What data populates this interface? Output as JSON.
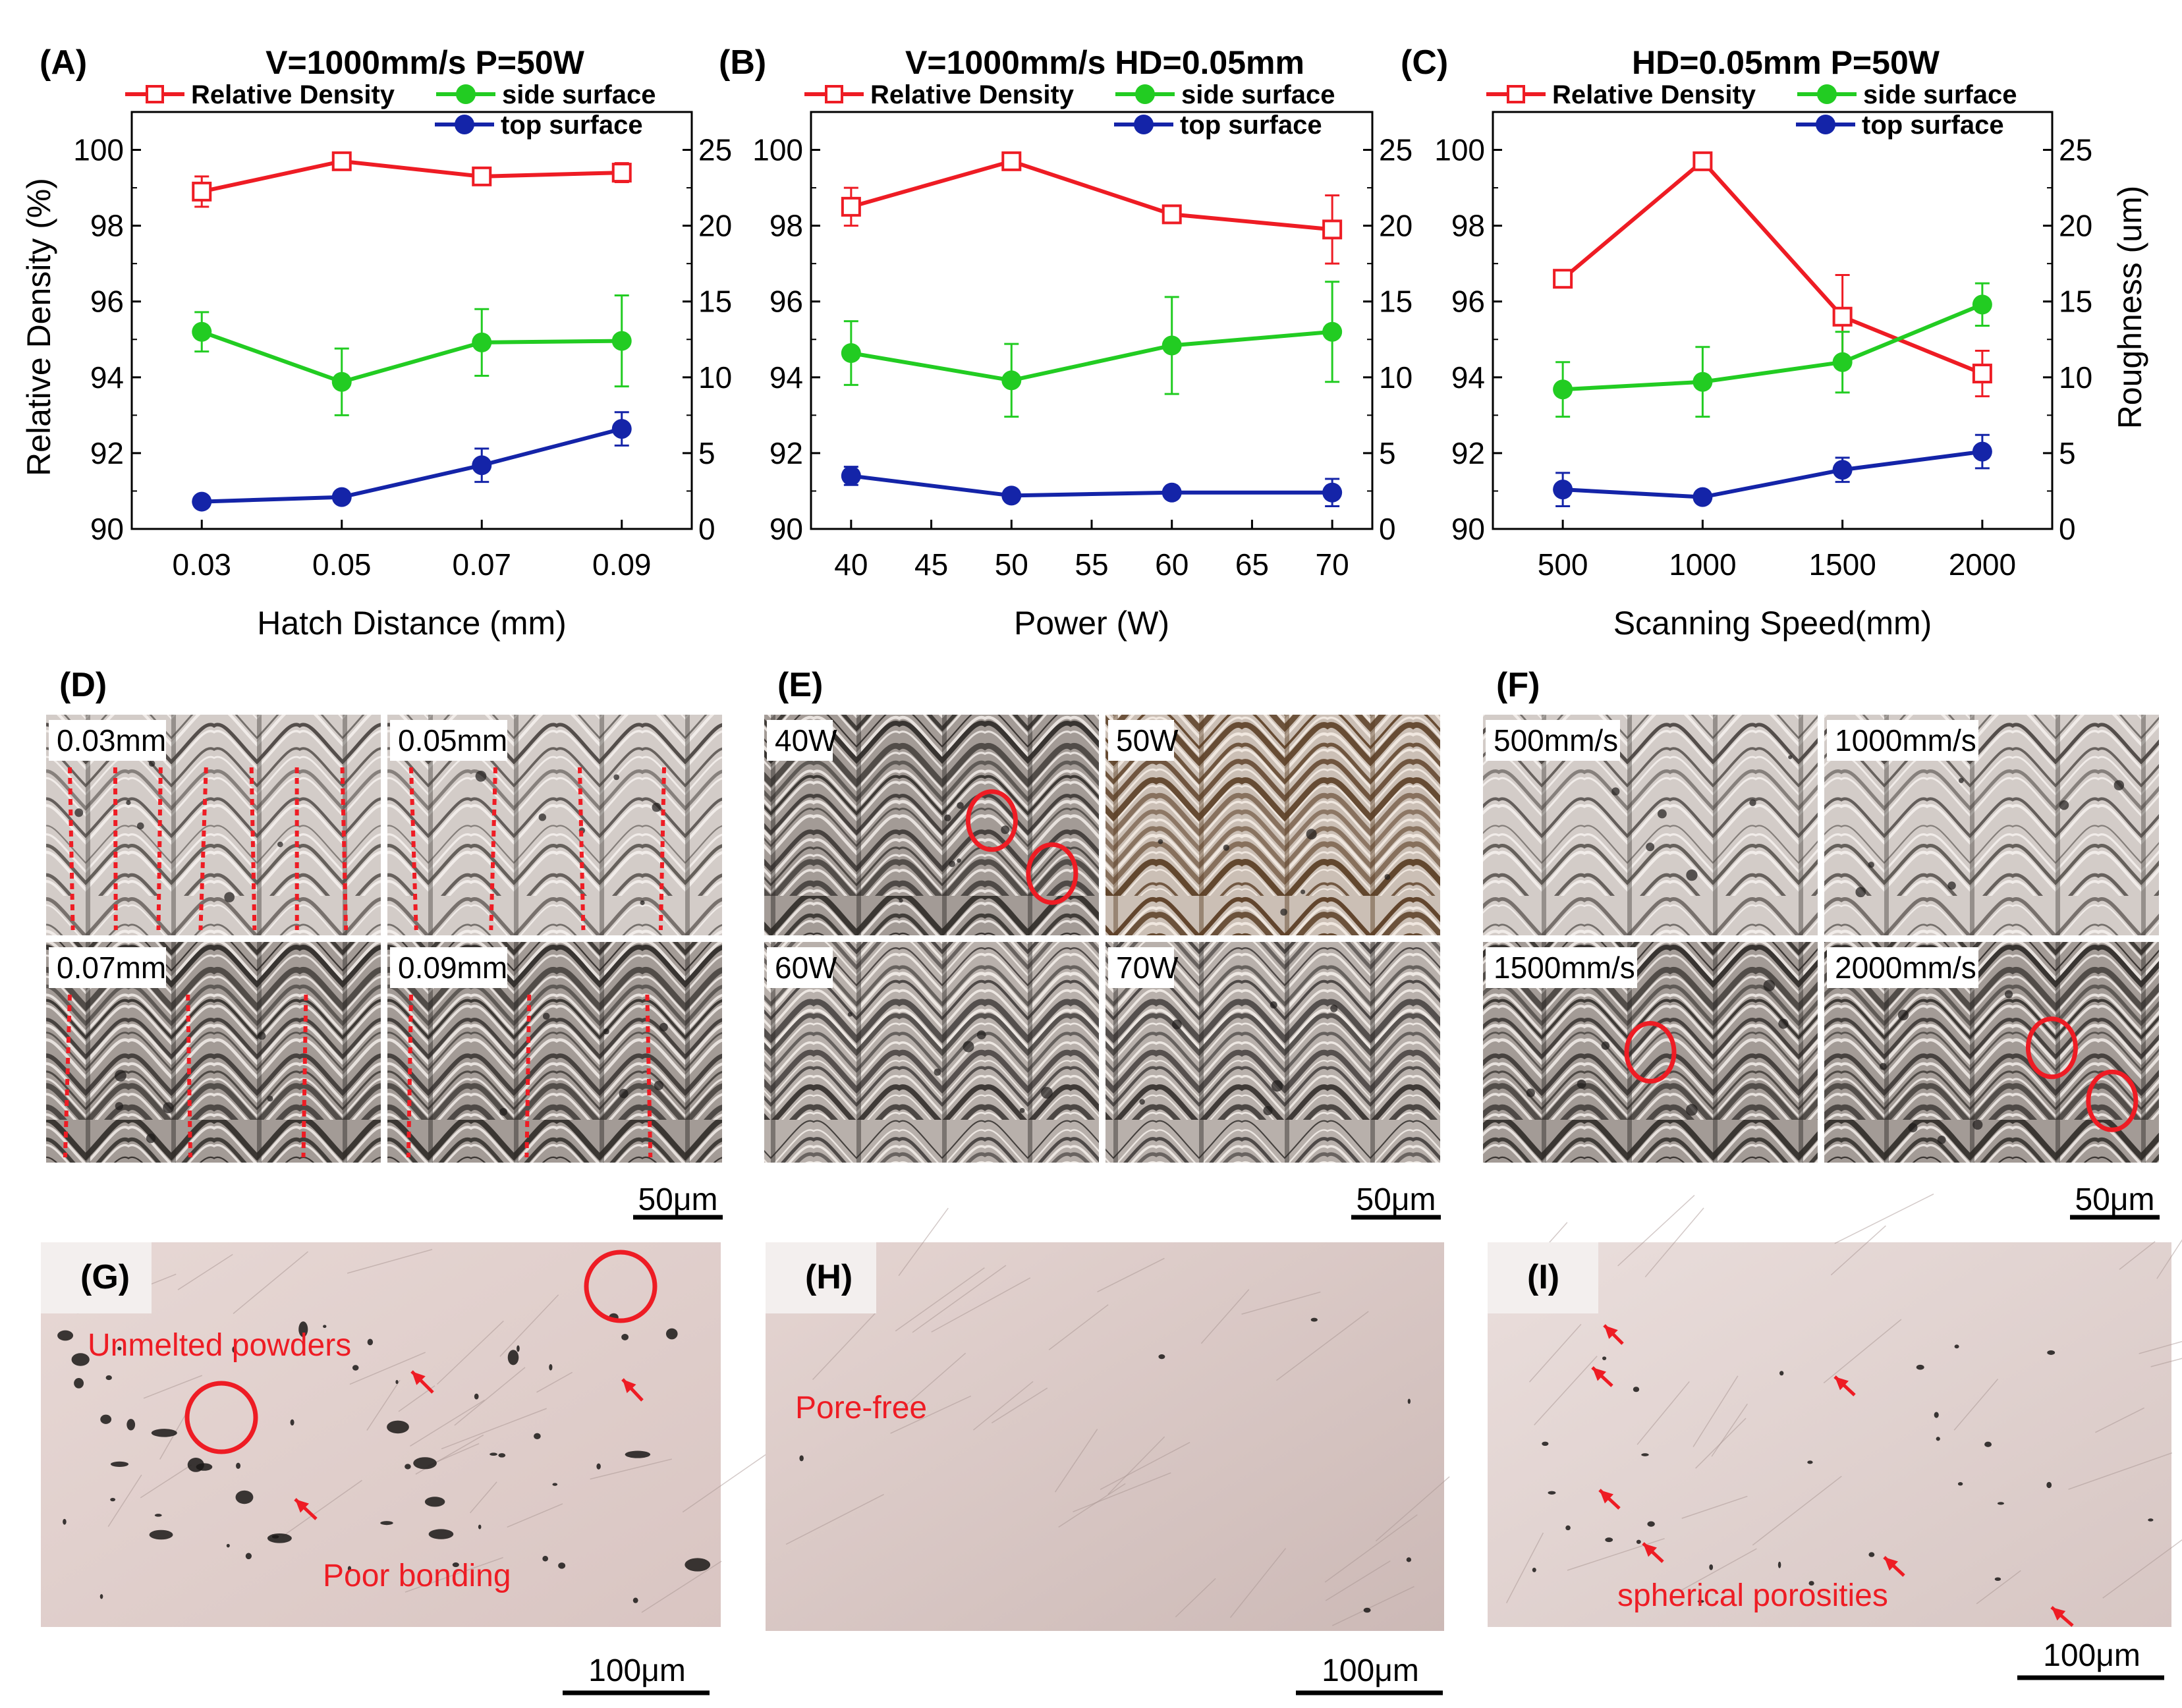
{
  "charts": [
    {
      "panel_label": "(A)",
      "title": "V=1000mm/s P=50W",
      "xlabel": "Hatch Distance (mm)",
      "x_ticks": [
        "0.03",
        "0.05",
        "0.07",
        "0.09"
      ],
      "show_left_title": true,
      "show_right_title": false
    },
    {
      "panel_label": "(B)",
      "title": "V=1000mm/s HD=0.05mm",
      "xlabel": "Power (W)",
      "x_ticks": [
        "40",
        "45",
        "50",
        "55",
        "60",
        "65",
        "70"
      ],
      "show_left_title": false,
      "show_right_title": false
    },
    {
      "panel_label": "(C)",
      "title": "HD=0.05mm P=50W",
      "xlabel": "Scanning Speed(mm)",
      "x_ticks": [
        "500",
        "1000",
        "1500",
        "2000"
      ],
      "show_left_title": false,
      "show_right_title": true
    }
  ],
  "axis_common": {
    "ylabel_left": "Relative Density (%)",
    "ylabel_right": "Roughness (um)",
    "y_left_ticks": [
      "90",
      "92",
      "94",
      "96",
      "98",
      "100"
    ],
    "y_right_ticks": [
      "0",
      "5",
      "10",
      "15",
      "20",
      "25"
    ],
    "legend": {
      "relative_density": "Relative Density",
      "side_surface": "side surface",
      "top_surface": "top surface"
    }
  },
  "colors": {
    "relative_density": "#ee1c24",
    "side_surface": "#22cc22",
    "top_surface": "#1424a8",
    "annotation_red": "#ee1c24"
  },
  "chart_data": [
    {
      "type": "line",
      "title": "V=1000mm/s P=50W",
      "xlabel": "Hatch Distance (mm)",
      "ylabel": "Relative Density (%)",
      "y2label": "Roughness (um)",
      "x": [
        0.03,
        0.05,
        0.07,
        0.09
      ],
      "xlim": [
        0.02,
        0.1
      ],
      "ylim": [
        90,
        101
      ],
      "y2lim": [
        0,
        27.5
      ],
      "series": [
        {
          "name": "Relative Density",
          "axis": "left",
          "marker": "open-square",
          "values": [
            98.9,
            99.7,
            99.3,
            99.4
          ],
          "errors": [
            0.4,
            0.1,
            0.1,
            0.25
          ]
        },
        {
          "name": "side surface",
          "axis": "right",
          "marker": "filled-circle",
          "values": [
            13.0,
            9.7,
            12.3,
            12.4
          ],
          "errors": [
            1.3,
            2.2,
            2.2,
            3.0
          ]
        },
        {
          "name": "top surface",
          "axis": "right",
          "marker": "filled-circle",
          "values": [
            1.8,
            2.1,
            4.2,
            6.6
          ],
          "errors": [
            0.3,
            0.3,
            1.1,
            1.1
          ]
        }
      ]
    },
    {
      "type": "line",
      "title": "V=1000mm/s HD=0.05mm",
      "xlabel": "Power (W)",
      "ylabel": "Relative Density (%)",
      "y2label": "Roughness (um)",
      "x": [
        40,
        50,
        60,
        70
      ],
      "xlim": [
        37.5,
        72.5
      ],
      "ylim": [
        90,
        101
      ],
      "y2lim": [
        0,
        27.5
      ],
      "series": [
        {
          "name": "Relative Density",
          "axis": "left",
          "marker": "open-square",
          "values": [
            98.5,
            99.7,
            98.3,
            97.9
          ],
          "errors": [
            0.5,
            0.1,
            0.2,
            0.9
          ]
        },
        {
          "name": "side surface",
          "axis": "right",
          "marker": "filled-circle",
          "values": [
            11.6,
            9.8,
            12.1,
            13.0
          ],
          "errors": [
            2.1,
            2.4,
            3.2,
            3.3
          ]
        },
        {
          "name": "top surface",
          "axis": "right",
          "marker": "filled-circle",
          "values": [
            3.5,
            2.2,
            2.4,
            2.4
          ],
          "errors": [
            0.6,
            0.3,
            0.3,
            0.9
          ]
        }
      ]
    },
    {
      "type": "line",
      "title": "HD=0.05mm P=50W",
      "xlabel": "Scanning Speed(mm)",
      "ylabel": "Relative Density (%)",
      "y2label": "Roughness (um)",
      "x": [
        500,
        1000,
        1500,
        2000
      ],
      "xlim": [
        250,
        2250
      ],
      "ylim": [
        90,
        101
      ],
      "y2lim": [
        0,
        27.5
      ],
      "series": [
        {
          "name": "Relative Density",
          "axis": "left",
          "marker": "open-square",
          "values": [
            96.6,
            99.7,
            95.6,
            94.1
          ],
          "errors": [
            0.05,
            0.05,
            1.1,
            0.6
          ]
        },
        {
          "name": "side surface",
          "axis": "right",
          "marker": "filled-circle",
          "values": [
            9.2,
            9.7,
            11.0,
            14.8
          ],
          "errors": [
            1.8,
            2.3,
            2.0,
            1.4
          ]
        },
        {
          "name": "top surface",
          "axis": "right",
          "marker": "filled-circle",
          "values": [
            2.6,
            2.1,
            3.9,
            5.1
          ],
          "errors": [
            1.1,
            0.2,
            0.8,
            1.1
          ]
        }
      ]
    }
  ],
  "micrographs": [
    {
      "panel_label": "(D)",
      "scale_bar": "50μm",
      "tiles": [
        {
          "label": "0.03mm",
          "variant": "light",
          "dashes": 7,
          "circles": 0
        },
        {
          "label": "0.05mm",
          "variant": "light",
          "dashes": 4,
          "circles": 0
        },
        {
          "label": "0.07mm",
          "variant": "dark",
          "dashes": 3,
          "circles": 0
        },
        {
          "label": "0.09mm",
          "variant": "dark",
          "dashes": 3,
          "circles": 0
        }
      ]
    },
    {
      "panel_label": "(E)",
      "scale_bar": "50μm",
      "tiles": [
        {
          "label": "40W",
          "variant": "dark",
          "dashes": 0,
          "circles": 2
        },
        {
          "label": "50W",
          "variant": "warm",
          "dashes": 0,
          "circles": 0
        },
        {
          "label": "60W",
          "variant": "dense",
          "dashes": 0,
          "circles": 0
        },
        {
          "label": "70W",
          "variant": "dense",
          "dashes": 0,
          "circles": 0
        }
      ]
    },
    {
      "panel_label": "(F)",
      "scale_bar": "50μm",
      "tiles": [
        {
          "label": "500mm/s",
          "variant": "light",
          "dashes": 0,
          "circles": 0
        },
        {
          "label": "1000mm/s",
          "variant": "light",
          "dashes": 0,
          "circles": 0
        },
        {
          "label": "1500mm/s",
          "variant": "dark",
          "dashes": 0,
          "circles": 1
        },
        {
          "label": "2000mm/s",
          "variant": "dark",
          "dashes": 0,
          "circles": 2
        }
      ]
    }
  ],
  "sections": [
    {
      "panel_label": "(G)",
      "scale_bar": "100μm",
      "annotations": [
        "Unmelted powders",
        "Poor bonding"
      ]
    },
    {
      "panel_label": "(H)",
      "scale_bar": "100μm",
      "annotations": [
        "Pore-free"
      ]
    },
    {
      "panel_label": "(I)",
      "scale_bar": "100μm",
      "annotations": [
        "spherical porosities"
      ]
    }
  ]
}
